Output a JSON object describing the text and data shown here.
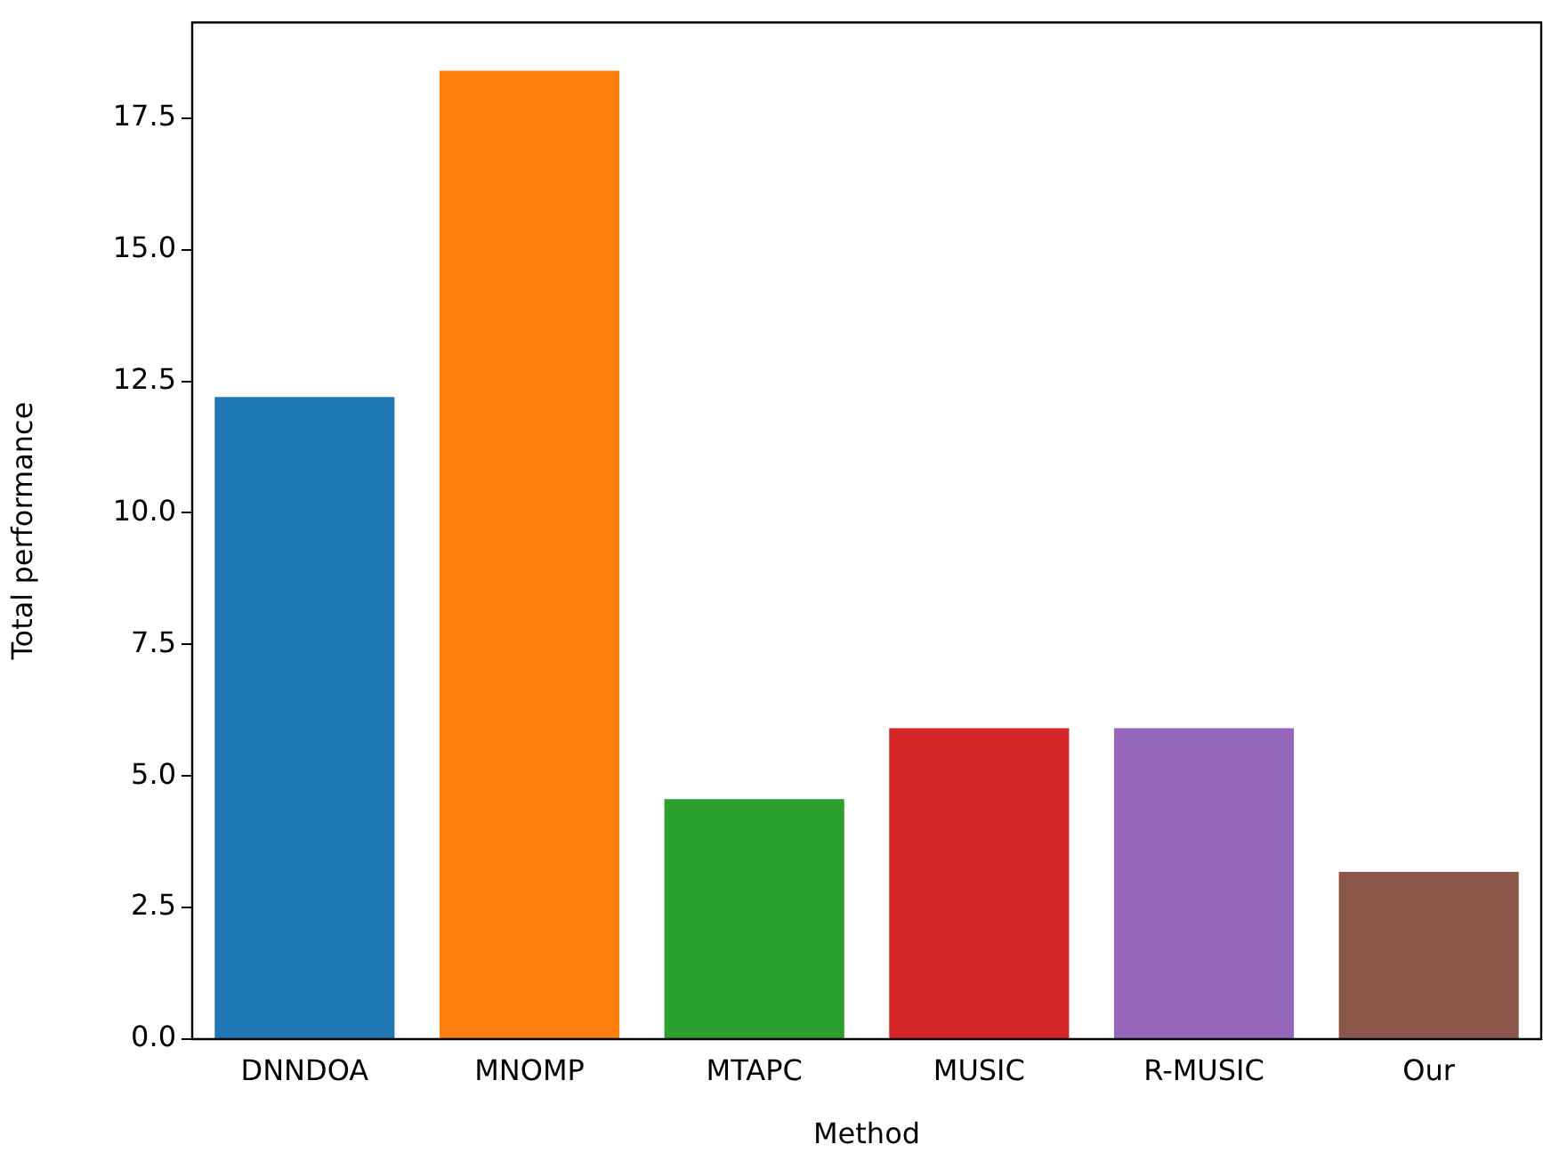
{
  "chart_data": {
    "type": "bar",
    "xlabel": "Method",
    "ylabel": "Total performance",
    "categories": [
      "DNNDOA",
      "MNOMP",
      "MTAPC",
      "MUSIC",
      "R-MUSIC",
      "Our"
    ],
    "values": [
      12.2,
      18.4,
      4.56,
      5.91,
      5.91,
      3.18
    ],
    "colors": [
      "#1f77b4",
      "#ff7f0e",
      "#2ca02c",
      "#d62728",
      "#9467bd",
      "#8c564b"
    ],
    "ylim": [
      0,
      19.32
    ],
    "yticks": [
      {
        "value": 0,
        "label": "0.0"
      },
      2.5,
      {
        "value": 5,
        "label": "5.0"
      },
      7.5,
      {
        "value": 10,
        "label": "10.0"
      },
      12.5,
      {
        "value": 15,
        "label": "15.0"
      },
      17.5
    ],
    "grid": false,
    "legend": false
  }
}
